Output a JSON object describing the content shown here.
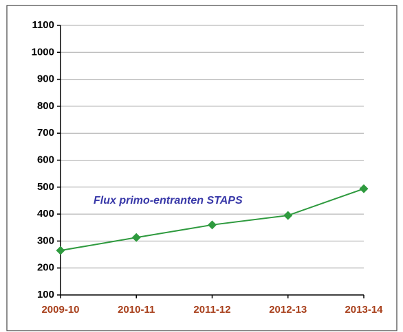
{
  "chart_data": {
    "type": "line",
    "annotation": "Flux primo-entranten STAPS",
    "categories": [
      "2009-10",
      "2010-11",
      "2011-12",
      "2012-13",
      "2013-14"
    ],
    "values": [
      265,
      313,
      360,
      395,
      494
    ],
    "color": "#2e9a3e",
    "ylim": [
      100,
      1100
    ],
    "yticks": [
      100,
      200,
      300,
      400,
      500,
      600,
      700,
      800,
      900,
      1000,
      1100
    ],
    "grid": true
  }
}
